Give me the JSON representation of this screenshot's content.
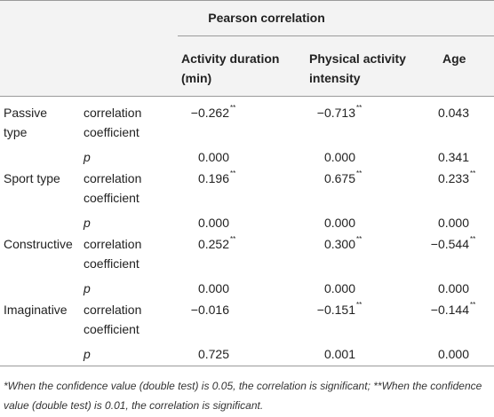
{
  "table": {
    "title": "Pearson correlation",
    "columns": [
      "Activity duration (min)",
      "Physical activity intensity",
      "Age"
    ],
    "groups": [
      {
        "label": "Passive type",
        "rows": [
          {
            "stat": "correlation coefficient",
            "cells": [
              {
                "value": "−0.262",
                "sig": "**"
              },
              {
                "value": "−0.713",
                "sig": "**"
              },
              {
                "value": "0.043"
              }
            ]
          },
          {
            "stat": "p",
            "cells": [
              {
                "value": "0.000"
              },
              {
                "value": "0.000"
              },
              {
                "value": "0.341"
              }
            ]
          }
        ]
      },
      {
        "label": "Sport type",
        "rows": [
          {
            "stat": "correlation coefficient",
            "cells": [
              {
                "value": "0.196",
                "sig": "**"
              },
              {
                "value": "0.675",
                "sig": "**"
              },
              {
                "value": "0.233",
                "sig": "**"
              }
            ]
          },
          {
            "stat": "p",
            "cells": [
              {
                "value": "0.000"
              },
              {
                "value": "0.000"
              },
              {
                "value": "0.000"
              }
            ]
          }
        ]
      },
      {
        "label": "Constructive",
        "rows": [
          {
            "stat": "correlation coefficient",
            "cells": [
              {
                "value": "0.252",
                "sig": "**"
              },
              {
                "value": "0.300",
                "sig": "**"
              },
              {
                "value": "−0.544",
                "sig": "**"
              }
            ]
          },
          {
            "stat": "p",
            "cells": [
              {
                "value": "0.000"
              },
              {
                "value": "0.000"
              },
              {
                "value": "0.000"
              }
            ]
          }
        ]
      },
      {
        "label": "Imaginative",
        "rows": [
          {
            "stat": "correlation coefficient",
            "cells": [
              {
                "value": "−0.016"
              },
              {
                "value": "−0.151",
                "sig": "**"
              },
              {
                "value": "−0.144",
                "sig": "**"
              }
            ]
          },
          {
            "stat": "p",
            "cells": [
              {
                "value": "0.725"
              },
              {
                "value": "0.001"
              },
              {
                "value": "0.000"
              }
            ]
          }
        ]
      }
    ],
    "footnote": "*When the confidence value (double test) is 0.05, the correlation is significant; **When the confidence value (double test) is 0.01, the correlation is significant."
  }
}
